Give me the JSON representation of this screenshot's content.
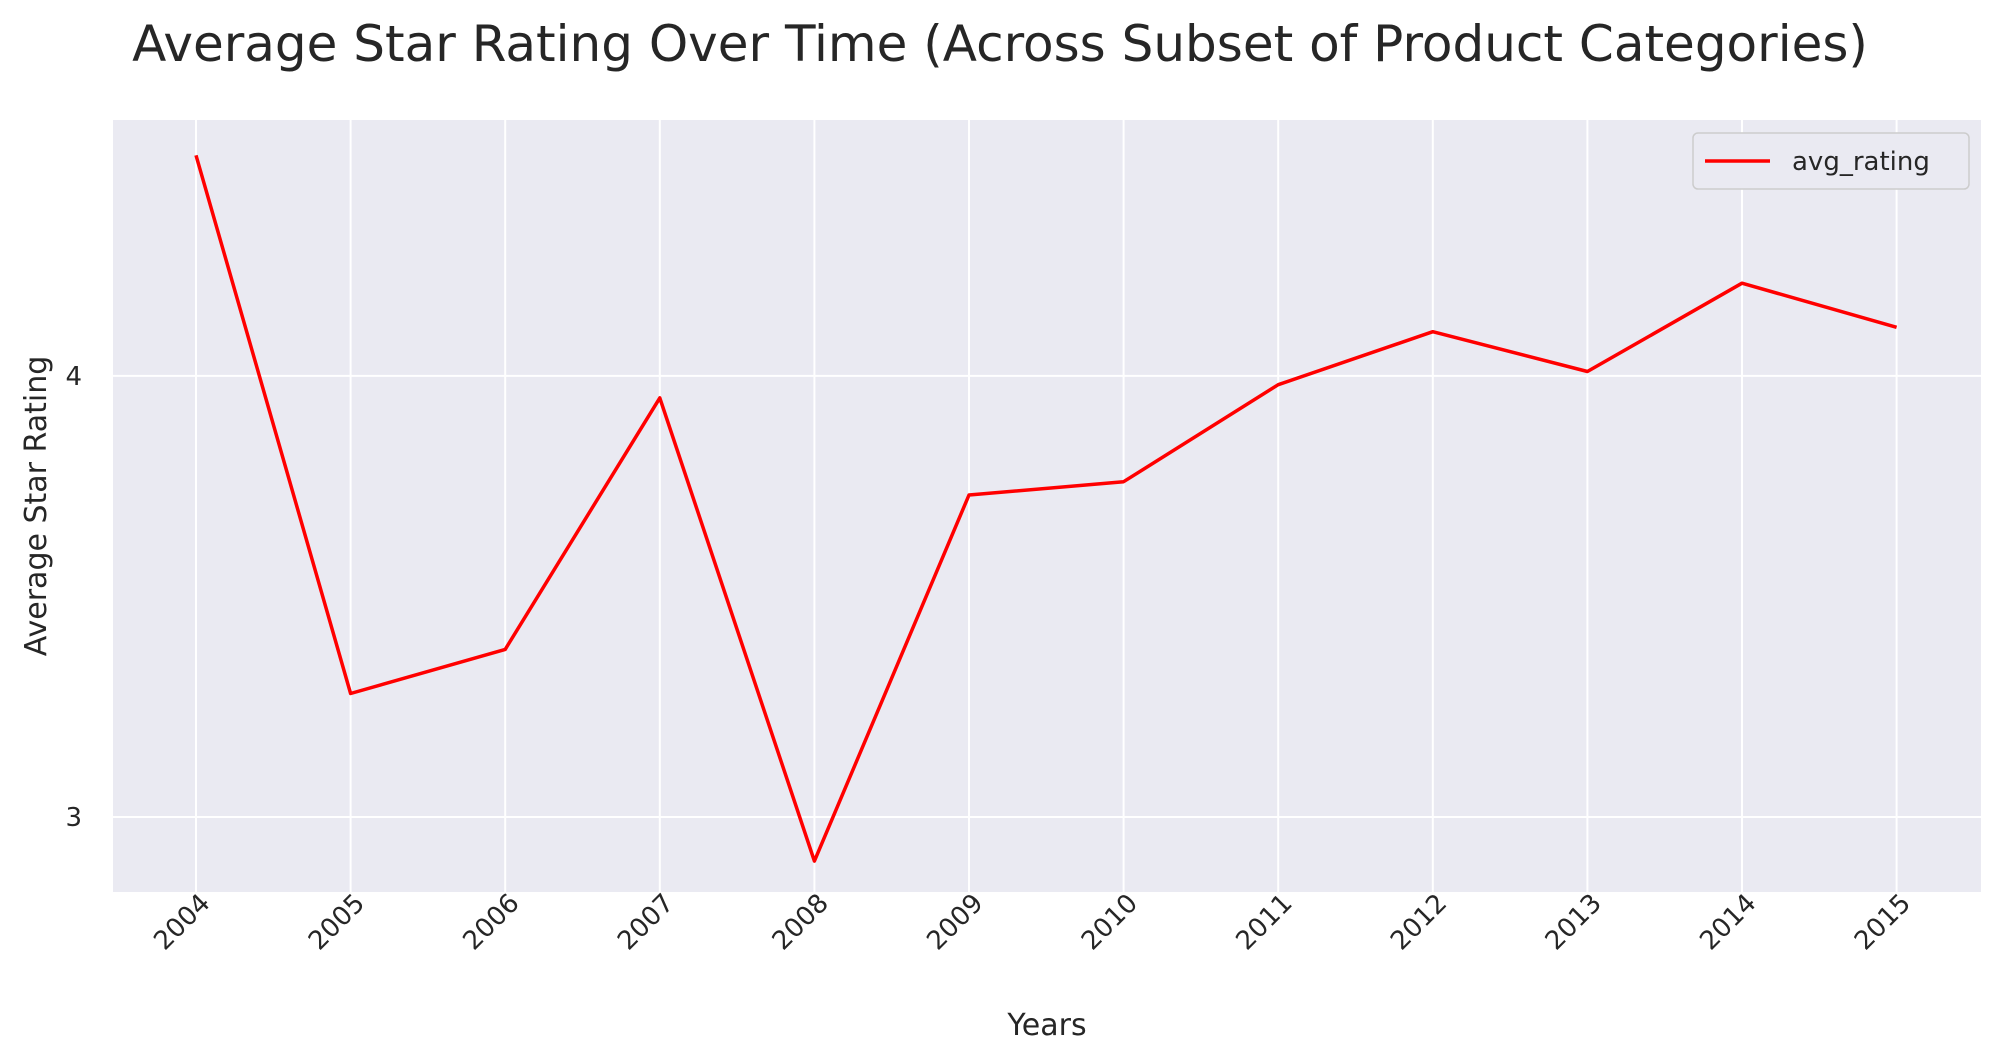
{
  "chart_data": {
    "type": "line",
    "title": "Average Star Rating Over Time (Across Subset of Product Categories)",
    "xlabel": "Years",
    "ylabel": "Average Star Rating",
    "x": [
      "2004",
      "2005",
      "2006",
      "2007",
      "2008",
      "2009",
      "2010",
      "2011",
      "2012",
      "2013",
      "2014",
      "2015"
    ],
    "series": [
      {
        "name": "avg_rating",
        "color": "#ff0000",
        "values": [
          4.5,
          3.28,
          3.38,
          3.95,
          2.9,
          3.73,
          3.76,
          3.98,
          4.1,
          4.01,
          4.21,
          4.11
        ]
      }
    ],
    "yticks": [
      3,
      4
    ],
    "ylim": [
      2.83,
      4.58
    ],
    "grid": true,
    "legend_position": "top-right",
    "colors": {
      "plot_background": "#eaeaf2",
      "grid": "#ffffff"
    }
  }
}
